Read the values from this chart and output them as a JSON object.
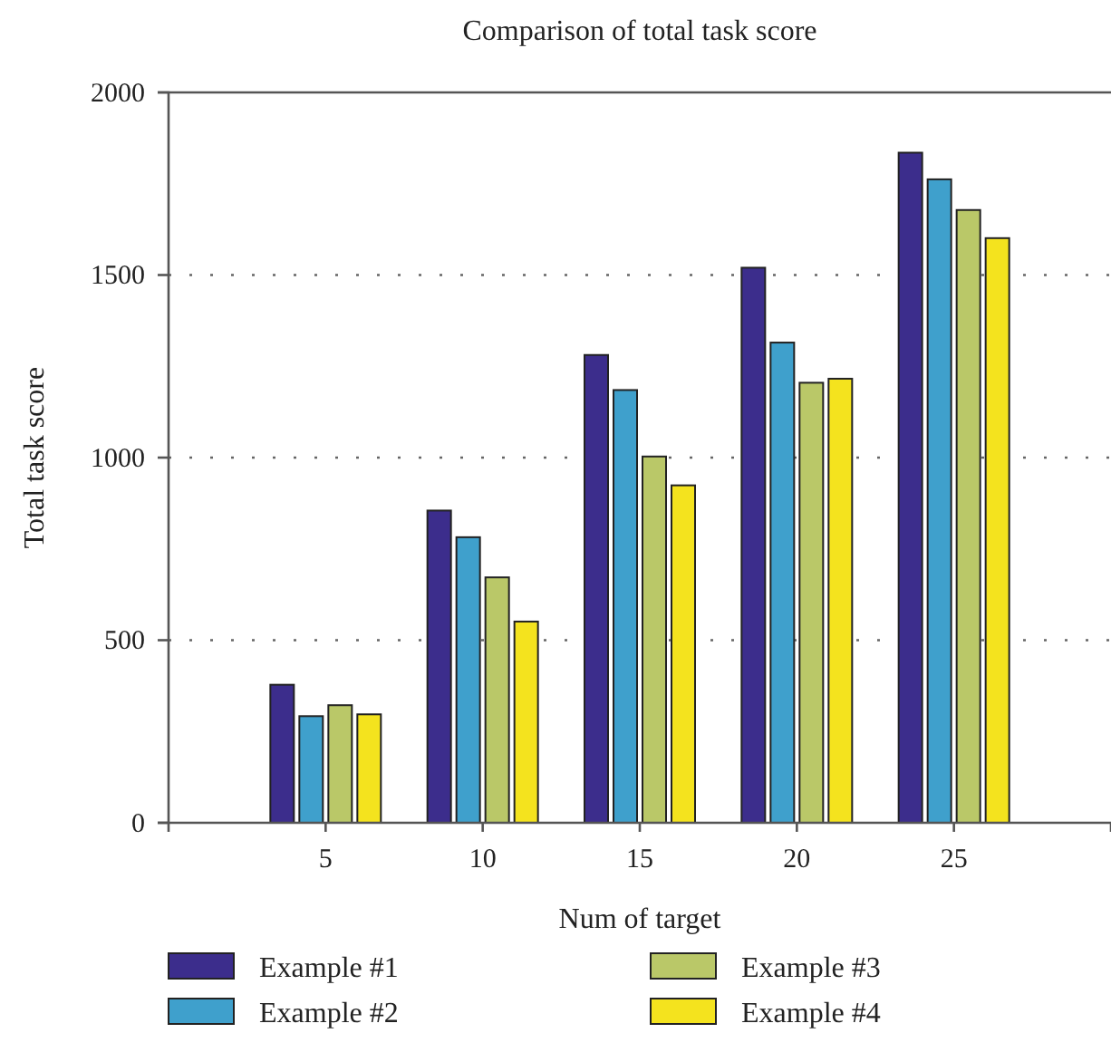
{
  "chart_data": {
    "type": "bar",
    "title": "Comparison of total task score",
    "xlabel": "Num of target",
    "ylabel": "Total task score",
    "categories": [
      "5",
      "10",
      "15",
      "20",
      "25"
    ],
    "series": [
      {
        "name": "Example #1",
        "color": "#3c2d8c",
        "values": [
          378,
          855,
          1281,
          1520,
          1835
        ]
      },
      {
        "name": "Example #2",
        "color": "#3fa0cc",
        "values": [
          292,
          782,
          1185,
          1315,
          1762
        ]
      },
      {
        "name": "Example #3",
        "color": "#bac868",
        "values": [
          322,
          672,
          1003,
          1205,
          1678
        ]
      },
      {
        "name": "Example #4",
        "color": "#f4e31e",
        "values": [
          297,
          551,
          924,
          1216,
          1601
        ]
      }
    ],
    "ylim": [
      0,
      2000
    ],
    "yticks": [
      0,
      500,
      1000,
      1500,
      2000
    ],
    "grid": "y",
    "legend": "bottom"
  }
}
